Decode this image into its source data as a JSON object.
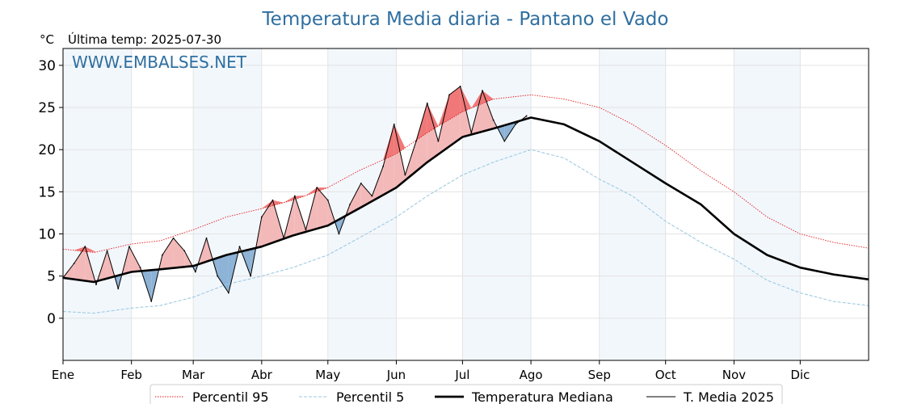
{
  "chart_data": {
    "type": "line",
    "title": "Temperatura Media diaria - Pantano el Vado",
    "subtitle": "Última temp: 2025-07-30",
    "ylabel": "°C",
    "watermark": "WWW.EMBALSES.NET",
    "xlim": [
      1,
      366
    ],
    "ylim": [
      -5,
      32
    ],
    "yticks": [
      0,
      5,
      10,
      15,
      20,
      25,
      30
    ],
    "grid": true,
    "legend_position": "bottom-center",
    "months": [
      {
        "label": "Ene",
        "day": 1
      },
      {
        "label": "Feb",
        "day": 32
      },
      {
        "label": "Mar",
        "day": 60
      },
      {
        "label": "Abr",
        "day": 91
      },
      {
        "label": "May",
        "day": 121
      },
      {
        "label": "Jun",
        "day": 152
      },
      {
        "label": "Jul",
        "day": 182
      },
      {
        "label": "Ago",
        "day": 213
      },
      {
        "label": "Sep",
        "day": 244
      },
      {
        "label": "Oct",
        "day": 274
      },
      {
        "label": "Nov",
        "day": 305
      },
      {
        "label": "Dic",
        "day": 335
      }
    ],
    "series": [
      {
        "name": "Percentil 95",
        "color": "#e31a1c",
        "style": "dotted",
        "x": [
          1,
          15,
          32,
          45,
          60,
          75,
          91,
          105,
          121,
          135,
          152,
          166,
          182,
          196,
          213,
          228,
          244,
          259,
          274,
          290,
          305,
          320,
          335,
          350,
          366
        ],
        "y": [
          8.2,
          7.8,
          8.8,
          9.2,
          10.5,
          12.0,
          13.0,
          14.0,
          15.5,
          17.5,
          19.5,
          22.0,
          24.5,
          26.0,
          26.5,
          26.0,
          25.0,
          23.0,
          20.5,
          17.5,
          15.0,
          12.0,
          10.0,
          9.0,
          8.3
        ]
      },
      {
        "name": "Percentil 5",
        "color": "#9ecae1",
        "style": "dashed",
        "x": [
          1,
          15,
          32,
          45,
          60,
          75,
          91,
          105,
          121,
          135,
          152,
          166,
          182,
          196,
          213,
          228,
          244,
          259,
          274,
          290,
          305,
          320,
          335,
          350,
          366
        ],
        "y": [
          0.8,
          0.6,
          1.2,
          1.5,
          2.5,
          4.0,
          5.0,
          6.0,
          7.5,
          9.5,
          12.0,
          14.5,
          17.0,
          18.5,
          20.0,
          19.0,
          16.5,
          14.5,
          11.5,
          9.0,
          7.0,
          4.5,
          3.0,
          2.0,
          1.5
        ]
      },
      {
        "name": "Temperatura Mediana",
        "color": "#000000",
        "style": "thick",
        "x": [
          1,
          15,
          32,
          45,
          60,
          75,
          91,
          105,
          121,
          135,
          152,
          166,
          182,
          196,
          213,
          228,
          244,
          259,
          274,
          290,
          305,
          320,
          335,
          350,
          366
        ],
        "y": [
          4.8,
          4.3,
          5.5,
          5.8,
          6.2,
          7.5,
          8.5,
          9.8,
          11.0,
          13.0,
          15.5,
          18.5,
          21.5,
          22.5,
          23.8,
          23.0,
          21.0,
          18.5,
          16.0,
          13.5,
          10.0,
          7.5,
          6.0,
          5.2,
          4.6
        ]
      },
      {
        "name": "T. Media 2025",
        "color": "#000000",
        "style": "thin",
        "x": [
          1,
          6,
          11,
          16,
          21,
          26,
          31,
          36,
          41,
          46,
          51,
          56,
          61,
          66,
          71,
          76,
          81,
          86,
          91,
          96,
          101,
          106,
          111,
          116,
          121,
          126,
          131,
          136,
          141,
          146,
          151,
          156,
          161,
          166,
          171,
          176,
          181,
          186,
          191,
          196,
          201,
          206,
          211
        ],
        "y": [
          4.8,
          6.5,
          8.5,
          4.0,
          8.0,
          3.5,
          8.5,
          6.0,
          2.0,
          7.5,
          9.5,
          8.0,
          5.5,
          9.5,
          5.0,
          3.0,
          8.5,
          5.0,
          12.0,
          14.0,
          9.5,
          14.5,
          10.5,
          15.5,
          14.0,
          10.0,
          13.5,
          16.0,
          14.5,
          18.0,
          23.0,
          17.0,
          21.0,
          25.5,
          21.0,
          26.5,
          27.5,
          22.0,
          27.0,
          23.5,
          21.0,
          23.0,
          24.0
        ]
      }
    ]
  }
}
